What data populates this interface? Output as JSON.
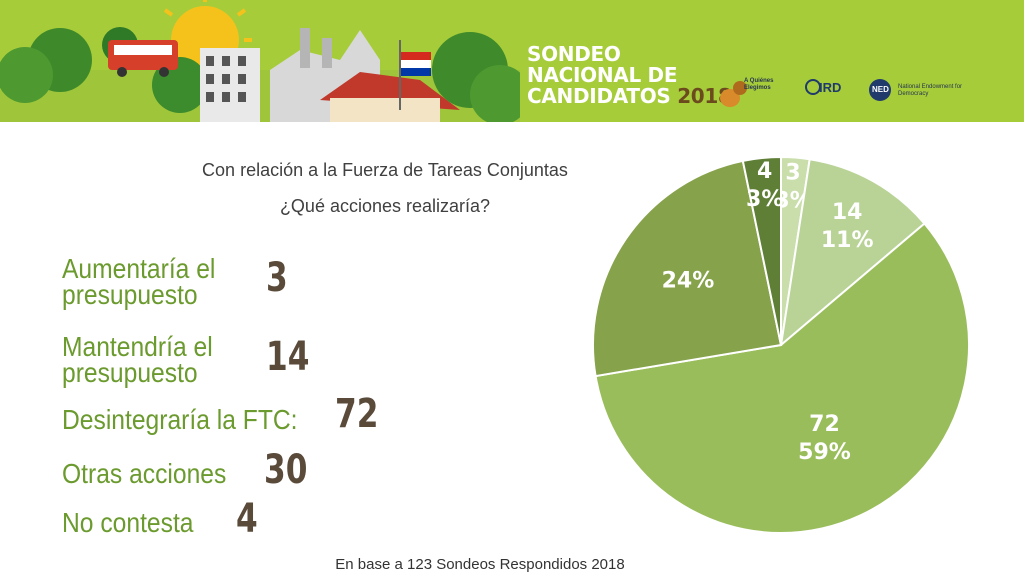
{
  "banner": {
    "title_lines": [
      "SONDEO",
      "NACIONAL DE",
      "CANDIDATOS"
    ],
    "title_year": "2018",
    "logos": [
      {
        "name": "a-quienes-elegimos-logo",
        "text": "A Quiénes Elegimos"
      },
      {
        "name": "ird-logo",
        "text": "IRD"
      },
      {
        "name": "ned-logo",
        "text": "NED",
        "caption": "National Endowment for Democracy"
      }
    ]
  },
  "question": {
    "line1": "Con relación a la Fuerza de Tareas Conjuntas",
    "line2": "¿Qué acciones realizaría?"
  },
  "rows": [
    {
      "label_lines": [
        "Aumentaría el",
        "presupuesto"
      ],
      "value": "3"
    },
    {
      "label_lines": [
        "Mantendría el",
        "presupuesto"
      ],
      "value": "14"
    },
    {
      "label_lines": [
        "Desintegraría la FTC:"
      ],
      "value": "72"
    },
    {
      "label_lines": [
        "Otras acciones"
      ],
      "value": "30"
    },
    {
      "label_lines": [
        "No contesta"
      ],
      "value": "4"
    }
  ],
  "footnote": "En base a 123 Sondeos Respondidos 2018",
  "chart_data": {
    "type": "pie",
    "start": "12 o'clock",
    "direction": "clockwise",
    "slices": [
      {
        "value": 3,
        "count_label": "3",
        "pct_label": "3%",
        "color": "#c9deaa"
      },
      {
        "value": 14,
        "count_label": "14",
        "pct_label": "11%",
        "color": "#b9d396"
      },
      {
        "value": 72,
        "count_label": "72",
        "pct_label": "59%",
        "color": "#9abd5c"
      },
      {
        "value": 30,
        "count_label": "",
        "pct_label": "24%",
        "color": "#86a24a"
      },
      {
        "value": 4,
        "count_label": "4",
        "pct_label": "3%",
        "color": "#5f7f37"
      }
    ]
  }
}
